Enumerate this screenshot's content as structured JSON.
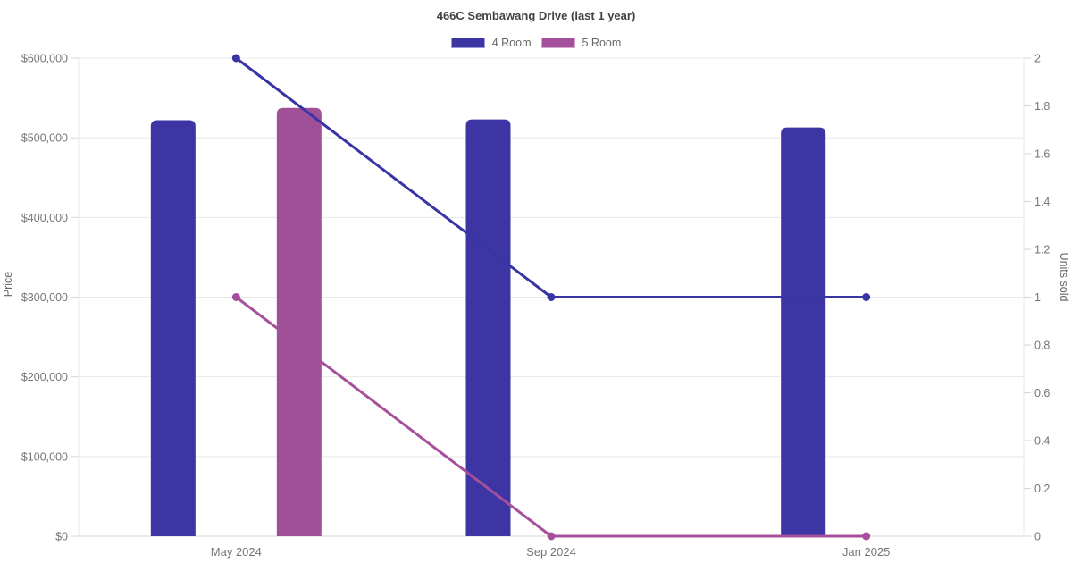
{
  "chart": {
    "title": "466C Sembawang Drive (last 1 year)",
    "legend": [
      {
        "label": "4 Room",
        "color": "#3c35a3",
        "border": "#9d99d9"
      },
      {
        "label": "5 Room",
        "color": "#a5509c",
        "border": "#d2a7cc"
      }
    ]
  },
  "chart_data": {
    "type": "bar",
    "subtype": "combo bar + line, dual y-axis",
    "title": "466C Sembawang Drive (last 1 year)",
    "categories": [
      "May 2024",
      "Sep 2024",
      "Jan 2025"
    ],
    "bar_series": [
      {
        "name": "4 Room",
        "y_axis": "left",
        "measure": "price",
        "color": "#3c35a3",
        "values": [
          522000,
          523000,
          513000
        ]
      },
      {
        "name": "5 Room",
        "y_axis": "left",
        "measure": "price",
        "color": "#a05096",
        "values": [
          537500,
          null,
          null
        ]
      }
    ],
    "line_series": [
      {
        "name": "4 Room",
        "y_axis": "right",
        "measure": "units_sold",
        "color": "#3834a4",
        "values": [
          2,
          1,
          1
        ]
      },
      {
        "name": "5 Room",
        "y_axis": "right",
        "measure": "units_sold",
        "color": "#a5509c",
        "values": [
          1,
          0,
          0
        ]
      }
    ],
    "y_left": {
      "label": "Price",
      "min": 0,
      "max": 600000,
      "tick_step": 100000,
      "tick_labels": [
        "$0",
        "$100,000",
        "$200,000",
        "$300,000",
        "$400,000",
        "$500,000",
        "$600,000"
      ]
    },
    "y_right": {
      "label": "Units sold",
      "min": 0,
      "max": 2,
      "tick_step": 0.2,
      "tick_labels": [
        "0",
        "0.2",
        "0.4",
        "0.6",
        "0.8",
        "1",
        "1.2",
        "1.4",
        "1.6",
        "1.8",
        "2"
      ]
    },
    "grid": {
      "horizontal": true,
      "vertical": false
    },
    "legend_position": "top-center",
    "colors": {
      "grid": "#e8e8e8",
      "axis": "#d6d6d6",
      "tick_text": "#757575",
      "axis_title_text": "#666666",
      "title_text": "#424242",
      "background": "#ffffff"
    }
  }
}
